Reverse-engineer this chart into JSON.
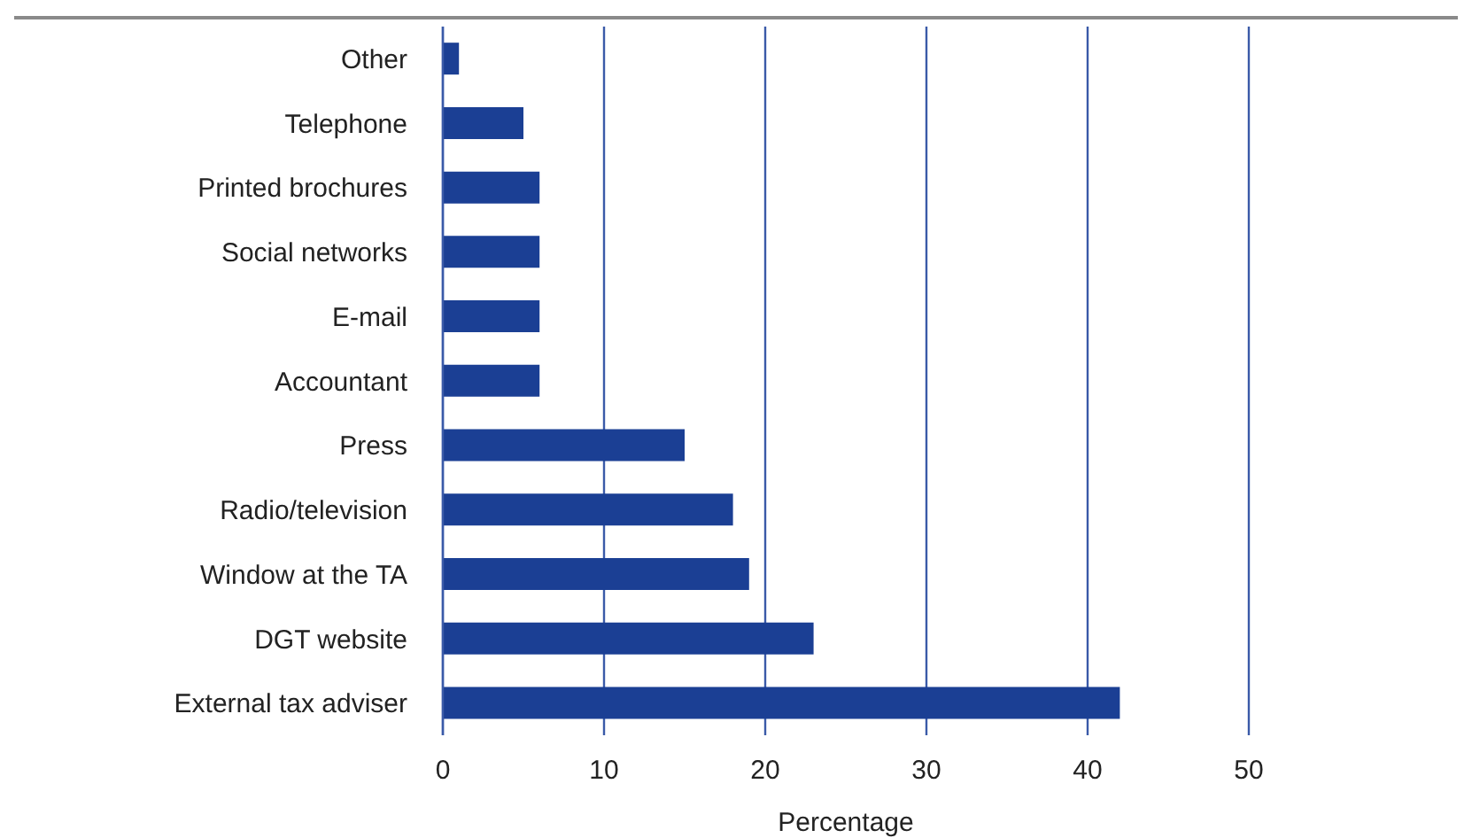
{
  "chart_data": {
    "type": "bar",
    "orientation": "horizontal",
    "xlabel": "Percentage",
    "categories": [
      "Other",
      "Telephone",
      "Printed brochures",
      "Social networks",
      "E-mail",
      "Accountant",
      "Press",
      "Radio/television",
      "Window at the TA",
      "DGT website",
      "External tax adviser"
    ],
    "values": [
      1,
      5,
      6,
      6,
      6,
      6,
      15,
      18,
      19,
      23,
      42
    ],
    "color": "#1b3f94",
    "xlim": [
      0,
      50
    ],
    "xticks": [
      0,
      10,
      20,
      30,
      40,
      50
    ],
    "grid": "x"
  }
}
